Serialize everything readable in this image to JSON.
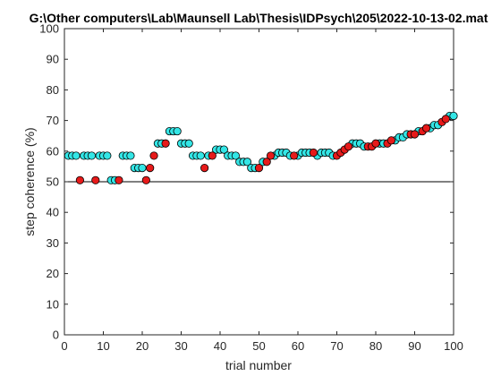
{
  "chart_data": {
    "type": "scatter",
    "title": "G:\\Other computers\\Lab\\Maunsell Lab\\Thesis\\IDPsych\\205\\2022-10-13-02.mat",
    "xlabel": "trial number",
    "ylabel": "step coherence (%)",
    "xlim": [
      0,
      100
    ],
    "ylim": [
      0,
      100
    ],
    "xticks": [
      "0",
      "10",
      "20",
      "30",
      "40",
      "50",
      "60",
      "70",
      "80",
      "90",
      "100"
    ],
    "yticks": [
      "0",
      "10",
      "20",
      "30",
      "40",
      "50",
      "60",
      "70",
      "80",
      "90",
      "100"
    ],
    "reference_line": 50,
    "grid": false,
    "legend": "none",
    "colors": {
      "correct": "#33e6e6",
      "error": "#e61a1a",
      "marker_edge": "#000000",
      "axes": "#262626",
      "reference_line": "#000000"
    },
    "series": [
      {
        "outcome": "correct",
        "x": [
          1,
          2,
          3,
          5,
          6,
          7,
          9,
          10,
          11,
          12,
          13,
          15,
          16,
          17,
          18,
          19,
          20,
          24,
          25,
          27,
          28,
          29,
          30,
          31,
          32,
          33,
          34,
          35,
          37,
          39,
          40,
          41,
          42,
          43,
          44,
          45,
          46,
          47,
          48,
          49,
          51,
          54,
          55,
          56,
          57,
          58,
          60,
          61,
          62,
          63,
          65,
          66,
          67,
          68,
          69,
          74,
          75,
          76,
          77,
          81,
          82,
          85,
          86,
          87,
          88,
          91,
          94,
          95,
          96,
          99,
          100
        ],
        "y": [
          58.5,
          58.5,
          58.5,
          58.5,
          58.5,
          58.5,
          58.5,
          58.5,
          58.5,
          50.5,
          50.5,
          58.5,
          58.5,
          58.5,
          54.5,
          54.5,
          54.5,
          62.5,
          62.5,
          66.5,
          66.5,
          66.5,
          62.5,
          62.5,
          62.5,
          58.5,
          58.5,
          58.5,
          58.5,
          60.5,
          60.5,
          60.5,
          58.5,
          58.5,
          58.5,
          56.5,
          56.5,
          56.5,
          54.5,
          54.5,
          56.5,
          58.5,
          59.5,
          59.5,
          59.5,
          58.5,
          58.5,
          59.5,
          59.5,
          59.5,
          58.5,
          59.5,
          59.5,
          59.5,
          58.5,
          62.5,
          62.5,
          62.5,
          61.5,
          62.5,
          62.5,
          63.5,
          64.5,
          64.5,
          65.5,
          66.5,
          67.5,
          68.5,
          68.5,
          71.5,
          71.5
        ]
      },
      {
        "outcome": "error",
        "x": [
          4,
          8,
          14,
          21,
          22,
          23,
          26,
          36,
          38,
          50,
          52,
          53,
          59,
          64,
          70,
          71,
          72,
          73,
          78,
          79,
          80,
          83,
          84,
          89,
          90,
          92,
          93,
          97,
          98
        ],
        "y": [
          50.5,
          50.5,
          50.5,
          50.5,
          54.5,
          58.5,
          62.5,
          54.5,
          58.5,
          54.5,
          56.5,
          58.5,
          58.5,
          59.5,
          58.5,
          59.5,
          60.5,
          61.5,
          61.5,
          61.5,
          62.5,
          62.5,
          63.5,
          65.5,
          65.5,
          66.5,
          67.5,
          69.5,
          70.5
        ]
      }
    ]
  }
}
